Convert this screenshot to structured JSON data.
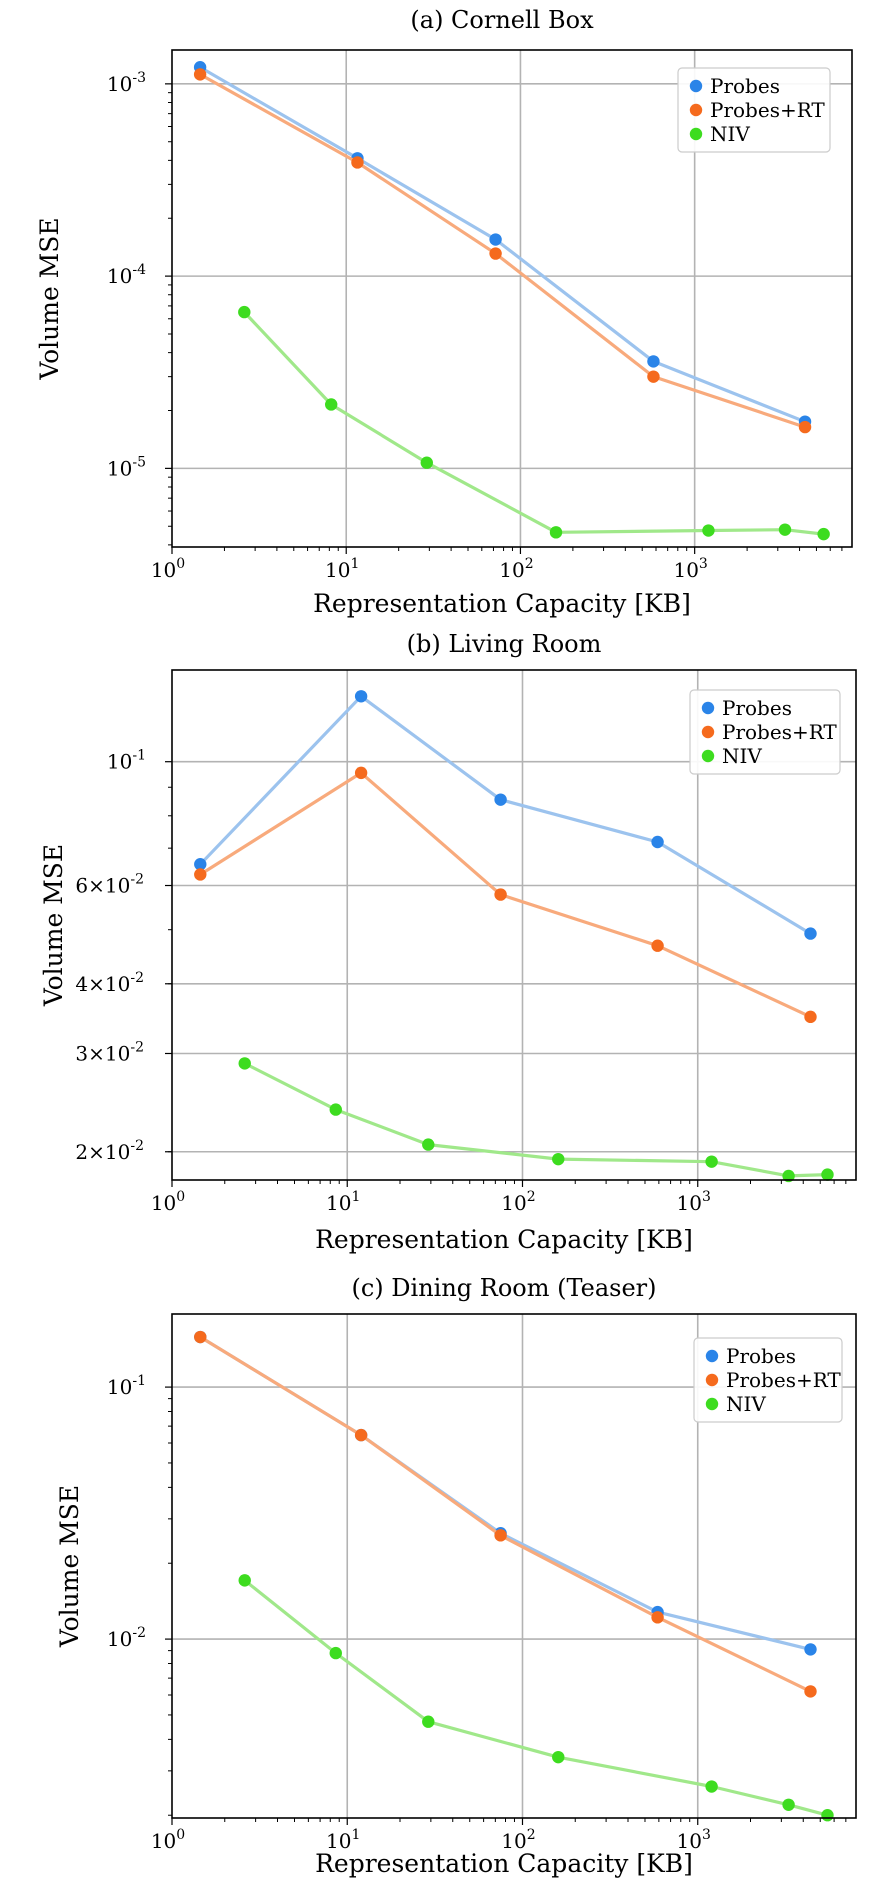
{
  "chart_data": [
    {
      "type": "line",
      "title": "(a) Cornell Box",
      "xlabel": "Representation Capacity [KB]",
      "ylabel": "Volume MSE",
      "xscale": "log",
      "yscale": "log",
      "xlim": [
        1.0,
        8000
      ],
      "ylim": [
        3.9e-06,
        0.0015
      ],
      "xticks": [
        {
          "value": 1,
          "base": "10",
          "exp": "0"
        },
        {
          "value": 10,
          "base": "10",
          "exp": "1"
        },
        {
          "value": 100,
          "base": "10",
          "exp": "2"
        },
        {
          "value": 1000,
          "base": "10",
          "exp": "3"
        }
      ],
      "yticks": [
        {
          "value": 1e-05,
          "base": "10",
          "exp": "-5"
        },
        {
          "value": 0.0001,
          "base": "10",
          "exp": "-4"
        },
        {
          "value": 0.001,
          "base": "10",
          "exp": "-3"
        }
      ],
      "grid": true,
      "legend_position": "top-right",
      "series": [
        {
          "name": "Probes",
          "color": "#2a84e8",
          "line_color": "#9cc3ee",
          "x": [
            1.45,
            11.6,
            72,
            580,
            4300
          ],
          "y": [
            0.00122,
            0.00041,
            0.000155,
            3.6e-05,
            1.75e-05
          ]
        },
        {
          "name": "Probes+RT",
          "color": "#f56a1d",
          "line_color": "#f8aa7c",
          "x": [
            1.45,
            11.6,
            72,
            580,
            4300
          ],
          "y": [
            0.00112,
            0.00039,
            0.000131,
            3e-05,
            1.64e-05
          ]
        },
        {
          "name": "NIV",
          "color": "#3ddc1f",
          "line_color": "#a0e88a",
          "x": [
            2.6,
            8.2,
            29,
            160,
            1200,
            3300,
            5500
          ],
          "y": [
            6.5e-05,
            2.15e-05,
            1.07e-05,
            4.65e-06,
            4.75e-06,
            4.8e-06,
            4.55e-06
          ]
        }
      ]
    },
    {
      "type": "line",
      "title": "(b) Living Room",
      "xlabel": "Representation Capacity [KB]",
      "ylabel": "Volume MSE",
      "xscale": "log",
      "yscale": "log",
      "xlim": [
        1.0,
        8000
      ],
      "ylim": [
        0.0178,
        0.146
      ],
      "xticks": [
        {
          "value": 1,
          "base": "10",
          "exp": "0"
        },
        {
          "value": 10,
          "base": "10",
          "exp": "1"
        },
        {
          "value": 100,
          "base": "10",
          "exp": "2"
        },
        {
          "value": 1000,
          "base": "10",
          "exp": "3"
        }
      ],
      "yticks": [
        {
          "value": 0.02,
          "mant": "2×10",
          "exp": "-2"
        },
        {
          "value": 0.03,
          "mant": "3×10",
          "exp": "-2"
        },
        {
          "value": 0.04,
          "mant": "4×10",
          "exp": "-2"
        },
        {
          "value": 0.06,
          "mant": "6×10",
          "exp": "-2"
        },
        {
          "value": 0.1,
          "base": "10",
          "exp": "-1"
        }
      ],
      "grid": true,
      "legend_position": "top-right",
      "series": [
        {
          "name": "Probes",
          "color": "#2a84e8",
          "line_color": "#9cc3ee",
          "x": [
            1.45,
            12,
            75,
            590,
            4400
          ],
          "y": [
            0.0655,
            0.131,
            0.0855,
            0.0718,
            0.0492
          ]
        },
        {
          "name": "Probes+RT",
          "color": "#f56a1d",
          "line_color": "#f8aa7c",
          "x": [
            1.45,
            12,
            75,
            590,
            4400
          ],
          "y": [
            0.0628,
            0.0955,
            0.0578,
            0.0468,
            0.0349
          ]
        },
        {
          "name": "NIV",
          "color": "#3ddc1f",
          "line_color": "#a0e88a",
          "x": [
            2.6,
            8.6,
            29,
            160,
            1200,
            3300,
            5500
          ],
          "y": [
            0.0288,
            0.0238,
            0.0206,
            0.0194,
            0.0192,
            0.0181,
            0.0182
          ]
        }
      ]
    },
    {
      "type": "line",
      "title": "(c) Dining Room (Teaser)",
      "xlabel": "Representation Capacity [KB]",
      "ylabel": "Volume MSE",
      "xscale": "log",
      "yscale": "log",
      "xlim": [
        1.0,
        8000
      ],
      "ylim": [
        0.00195,
        0.195
      ],
      "xticks": [
        {
          "value": 1,
          "base": "10",
          "exp": "0"
        },
        {
          "value": 10,
          "base": "10",
          "exp": "1"
        },
        {
          "value": 100,
          "base": "10",
          "exp": "2"
        },
        {
          "value": 1000,
          "base": "10",
          "exp": "3"
        }
      ],
      "yticks": [
        {
          "value": 0.01,
          "base": "10",
          "exp": "-2"
        },
        {
          "value": 0.1,
          "base": "10",
          "exp": "-1"
        }
      ],
      "grid": true,
      "legend_position": "top-right",
      "series": [
        {
          "name": "Probes",
          "color": "#2a84e8",
          "line_color": "#9cc3ee",
          "x": [
            1.45,
            12,
            75,
            590,
            4400
          ],
          "y": [
            0.158,
            0.0645,
            0.0263,
            0.0128,
            0.0091
          ]
        },
        {
          "name": "Probes+RT",
          "color": "#f56a1d",
          "line_color": "#f8aa7c",
          "x": [
            1.45,
            12,
            75,
            590,
            4400
          ],
          "y": [
            0.158,
            0.0645,
            0.0258,
            0.0122,
            0.0062
          ]
        },
        {
          "name": "NIV",
          "color": "#3ddc1f",
          "line_color": "#a0e88a",
          "x": [
            2.6,
            8.6,
            29,
            160,
            1200,
            3300,
            5500
          ],
          "y": [
            0.0171,
            0.0088,
            0.0047,
            0.0034,
            0.0026,
            0.0022,
            0.002
          ]
        }
      ]
    }
  ]
}
